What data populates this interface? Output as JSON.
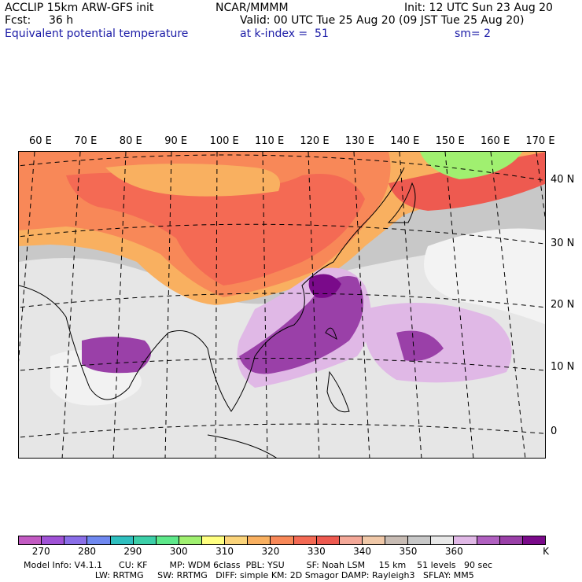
{
  "header": {
    "model": "ACCLIP 15km ARW-GFS init",
    "org": "NCAR/MMMM",
    "init": "Init: 12 UTC Sun 23 Aug 20",
    "fcst_label": "Fcst:",
    "fcst_value": "36 h",
    "valid": "Valid: 00 UTC Tue 25 Aug 20 (09 JST Tue 25 Aug 20)",
    "field": "Equivalent potential temperature",
    "level": "at k-index =  51",
    "smoothing": "sm= 2"
  },
  "map": {
    "longitude_labels": [
      "60 E",
      "70 E",
      "80 E",
      "90 E",
      "100 E",
      "110 E",
      "120 E",
      "130 E",
      "140 E",
      "150 E",
      "160 E",
      "170 E"
    ],
    "latitude_labels": [
      "40 N",
      "30 N",
      "20 N",
      "10 N",
      "0"
    ]
  },
  "colorbar": {
    "colors": [
      "#c25ac2",
      "#a052d6",
      "#8a6ee8",
      "#6f88f0",
      "#2fbfbf",
      "#3ccfa8",
      "#5ee88a",
      "#a0f070",
      "#ffff80",
      "#fbd47a",
      "#f9b060",
      "#f88858",
      "#f46a54",
      "#ee5a50",
      "#f4a898",
      "#f0c8a8",
      "#c8bcb4",
      "#c8c8c8",
      "#e8e8e8",
      "#e0b8e6",
      "#b060c0",
      "#9a40a8",
      "#7a0a8a"
    ],
    "tick_labels": [
      "270",
      "280",
      "290",
      "300",
      "310",
      "320",
      "330",
      "340",
      "350",
      "360"
    ],
    "unit": "K"
  },
  "footer": {
    "line1": "Model Info: V4.1.1      CU: KF        MP: WDM 6class  PBL: YSU        SF: Noah LSM     15 km    51 levels   90 sec",
    "line2": "                          LW: RRTMG     SW: RRTMG   DIFF: simple KM: 2D Smagor DAMP: Rayleigh3   SFLAY: MM5"
  }
}
